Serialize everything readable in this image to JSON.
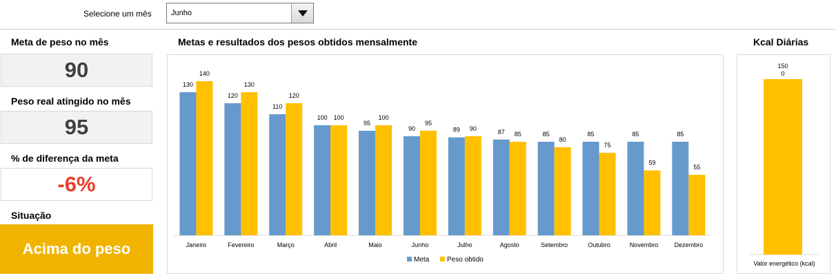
{
  "month_selector": {
    "label": "Selecione um mês",
    "value": "Junho"
  },
  "cards": {
    "goal_title": "Meta de peso no mês",
    "goal_value": "90",
    "actual_title": "Peso real atingido no mês",
    "actual_value": "95",
    "diff_title": "% de diferença da meta",
    "diff_value": "-6%",
    "status_title": "Situação",
    "status_value": "Acima do peso"
  },
  "colors": {
    "meta": "#6699cc",
    "peso": "#ffc000",
    "status_bg": "#f0b400",
    "diff_text": "#e8402a"
  },
  "chart_data": [
    {
      "type": "bar",
      "title": "Metas e resultados dos pesos obtidos mensalmente",
      "categories": [
        "Janeiro",
        "Fevereiro",
        "Março",
        "Abril",
        "Maio",
        "Junho",
        "Julho",
        "Agosto",
        "Setembro",
        "Outubro",
        "Novembro",
        "Dezembro"
      ],
      "series": [
        {
          "name": "Meta",
          "values": [
            130,
            120,
            110,
            100,
            95,
            90,
            89,
            87,
            85,
            85,
            85,
            85
          ]
        },
        {
          "name": "Peso obtido",
          "values": [
            140,
            130,
            120,
            100,
            100,
            95,
            90,
            85,
            80,
            75,
            59,
            55
          ]
        }
      ],
      "ylim": [
        0,
        150
      ],
      "legend": "bottom",
      "grid": false
    },
    {
      "type": "bar",
      "title": "Kcal Diárias",
      "categories": [
        "Valor energético (kcal)"
      ],
      "series": [
        {
          "values": [
            150
          ]
        }
      ],
      "data_label_extra": "0",
      "ylim": [
        0,
        160
      ],
      "grid": false
    }
  ]
}
